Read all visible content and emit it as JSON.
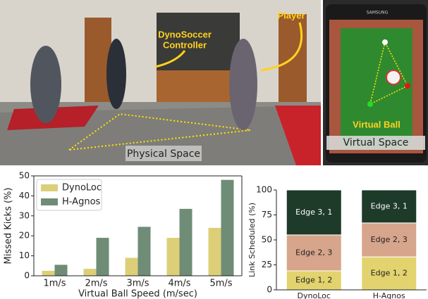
{
  "photo": {
    "controller_label": [
      "DynoSoccer",
      "Controller"
    ],
    "player_label": "Player",
    "physical_space_label": "Physical Space",
    "tablet_brand": "SAMSUNG",
    "virtual_ball_label": "Virtual Ball",
    "virtual_space_label": "Virtual Space"
  },
  "chart_data": [
    {
      "type": "bar",
      "xlabel": "Virtual Ball Speed (m/sec)",
      "ylabel": "Missed Kicks (%)",
      "categories": [
        "1m/s",
        "2m/s",
        "3m/s",
        "4m/s",
        "5m/s"
      ],
      "series": [
        {
          "name": "DynoLoc",
          "color": "#dccf78",
          "values": [
            2.5,
            3.5,
            9,
            19,
            24
          ]
        },
        {
          "name": "H-Agnos",
          "color": "#6f8c76",
          "values": [
            5.5,
            19,
            24.5,
            33.5,
            48
          ]
        }
      ],
      "ylim": [
        0,
        50
      ],
      "yticks": [
        0,
        10,
        20,
        30,
        40,
        50
      ],
      "legend": "upper-left"
    },
    {
      "type": "stacked_bar",
      "ylabel": "Link Scheduled (%)",
      "categories": [
        "DynoLoc",
        "H-Agnos"
      ],
      "series": [
        {
          "name": "Edge 1, 2",
          "color": "#e2d36f",
          "values": [
            19,
            33
          ]
        },
        {
          "name": "Edge 2, 3",
          "color": "#d6a58c",
          "values": [
            36,
            34
          ]
        },
        {
          "name": "Edge 3, 1",
          "color": "#1e3a29",
          "values": [
            45,
            33
          ]
        }
      ],
      "ylim": [
        0,
        100
      ],
      "yticks": [
        0,
        25,
        50,
        75,
        100
      ]
    }
  ]
}
